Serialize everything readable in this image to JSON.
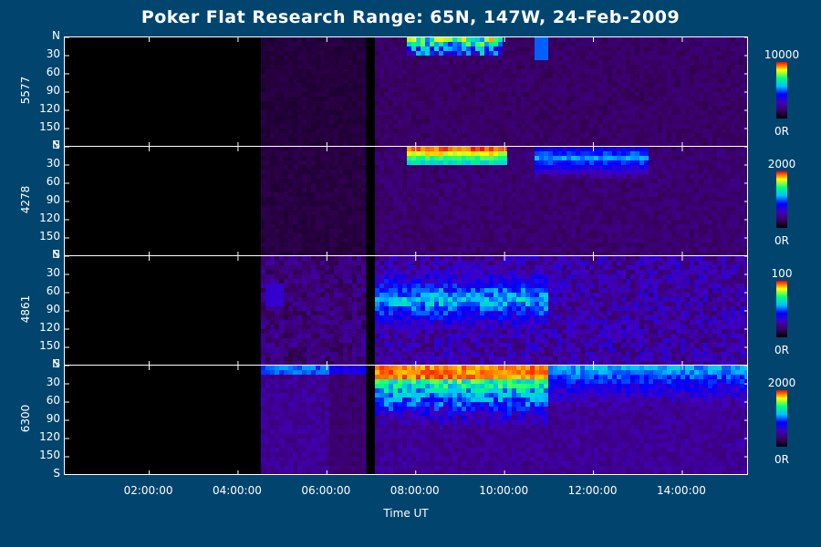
{
  "chart_data": {
    "type": "heatmap",
    "title": "Poker Flat Research Range: 65N, 147W, 24-Feb-2009",
    "xlabel": "Time UT",
    "x_ticks": [
      "02:00:00",
      "04:00:00",
      "06:00:00",
      "08:00:00",
      "10:00:00",
      "12:00:00",
      "14:00:00"
    ],
    "x_tick_hours": [
      2,
      4,
      6,
      8,
      10,
      12,
      14
    ],
    "xlim_hours": [
      0.1,
      15.5
    ],
    "y_ticks": [
      "N",
      "30",
      "60",
      "90",
      "120",
      "150",
      "S"
    ],
    "y_values": [
      0,
      30,
      60,
      90,
      120,
      150,
      180
    ],
    "panels": [
      {
        "name": "5577",
        "cbar_max": "10000",
        "cbar_min": "0R"
      },
      {
        "name": "4278",
        "cbar_max": "2000",
        "cbar_min": "0R"
      },
      {
        "name": "4861",
        "cbar_max": "100",
        "cbar_min": "0R"
      },
      {
        "name": "6300",
        "cbar_max": "2000",
        "cbar_min": "0R"
      }
    ],
    "colormap": [
      "#000000",
      "#3a0060",
      "#4000c0",
      "#0000ff",
      "#00c0ff",
      "#00ff80",
      "#ffff00",
      "#ff0000"
    ]
  }
}
